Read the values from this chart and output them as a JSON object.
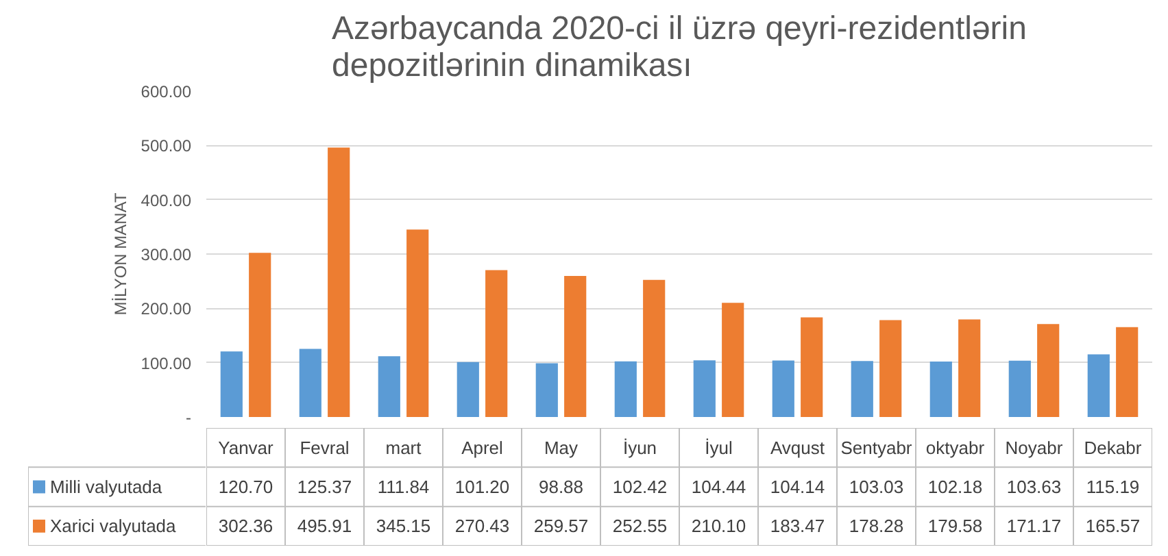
{
  "chart_data": {
    "type": "bar",
    "title": "Azərbaycanda 2020-ci il üzrə qeyri-rezidentlərin\ndepozitlərinin dinamikası",
    "ylabel": "MİLYON MANAT",
    "categories": [
      "Yanvar",
      "Fevral",
      "mart",
      "Aprel",
      "May",
      "İyun",
      "İyul",
      "Avqust",
      "Sentyabr",
      "oktyabr",
      "Noyabr",
      "Dekabr"
    ],
    "series": [
      {
        "name": "Milli valyutada",
        "color": "#5b9bd5",
        "values": [
          120.7,
          125.37,
          111.84,
          101.2,
          98.88,
          102.42,
          104.44,
          104.14,
          103.03,
          102.18,
          103.63,
          115.19
        ],
        "value_labels": [
          "120.70",
          "125.37",
          "111.84",
          "101.20",
          "98.88",
          "102.42",
          "104.44",
          "104.14",
          "103.03",
          "102.18",
          "103.63",
          "115.19"
        ]
      },
      {
        "name": "Xarici valyutada",
        "color": "#ed7d31",
        "values": [
          302.36,
          495.91,
          345.15,
          270.43,
          259.57,
          252.55,
          210.1,
          183.47,
          178.28,
          179.58,
          171.17,
          165.57
        ],
        "value_labels": [
          "302.36",
          "495.91",
          "345.15",
          "270.43",
          "259.57",
          "252.55",
          "210.10",
          "183.47",
          "178.28",
          "179.58",
          "171.17",
          "165.57"
        ]
      }
    ],
    "ylim": [
      0,
      600
    ],
    "yticks": [
      {
        "value": 0,
        "label": "-"
      },
      {
        "value": 100,
        "label": "100.00"
      },
      {
        "value": 200,
        "label": "200.00"
      },
      {
        "value": 300,
        "label": "300.00"
      },
      {
        "value": 400,
        "label": "400.00"
      },
      {
        "value": 500,
        "label": "500.00"
      },
      {
        "value": 600,
        "label": "600.00"
      }
    ],
    "grid": "y",
    "legend": "bottom"
  }
}
